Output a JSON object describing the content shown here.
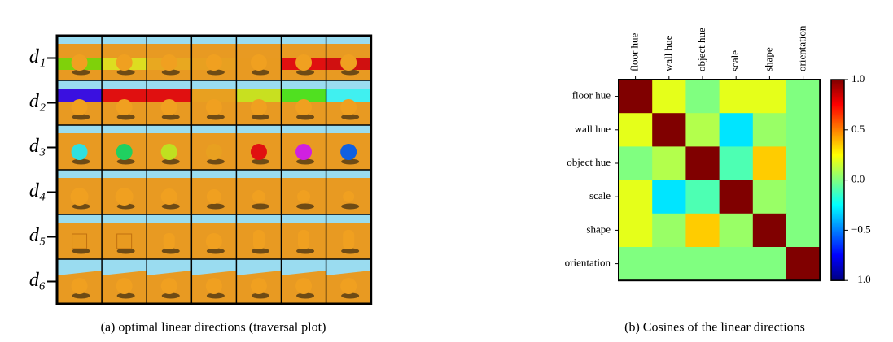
{
  "panel_a": {
    "row_labels": [
      "d₁",
      "d₂",
      "d₃",
      "d₄",
      "d₅",
      "d₆"
    ],
    "caption": "(a) optimal linear directions (traversal plot)"
  },
  "chart_data": {
    "type": "heatmap",
    "colormap": "jet",
    "x_categories": [
      "floor hue",
      "wall hue",
      "object hue",
      "scale",
      "shape",
      "orientation"
    ],
    "y_categories": [
      "floor hue",
      "wall hue",
      "object hue",
      "scale",
      "shape",
      "orientation"
    ],
    "values": [
      [
        1.0,
        0.2,
        0.0,
        0.2,
        0.2,
        0.0
      ],
      [
        0.2,
        1.0,
        0.1,
        -0.3,
        0.05,
        0.0
      ],
      [
        0.0,
        0.1,
        1.0,
        -0.1,
        0.35,
        0.0
      ],
      [
        0.2,
        -0.3,
        -0.1,
        1.0,
        0.05,
        0.0
      ],
      [
        0.2,
        0.05,
        0.35,
        0.05,
        1.0,
        0.0
      ],
      [
        0.0,
        0.0,
        0.0,
        0.0,
        0.0,
        1.0
      ]
    ],
    "zlim": [
      -1.0,
      1.0
    ],
    "colorbar_ticks": [
      {
        "value": 1.0,
        "label": "1.0"
      },
      {
        "value": 0.5,
        "label": "0.5"
      },
      {
        "value": 0.0,
        "label": "0.0"
      },
      {
        "value": -0.5,
        "label": "−0.5"
      },
      {
        "value": -1.0,
        "label": "−1.0"
      }
    ],
    "caption": "(b) Cosines of the linear directions"
  }
}
